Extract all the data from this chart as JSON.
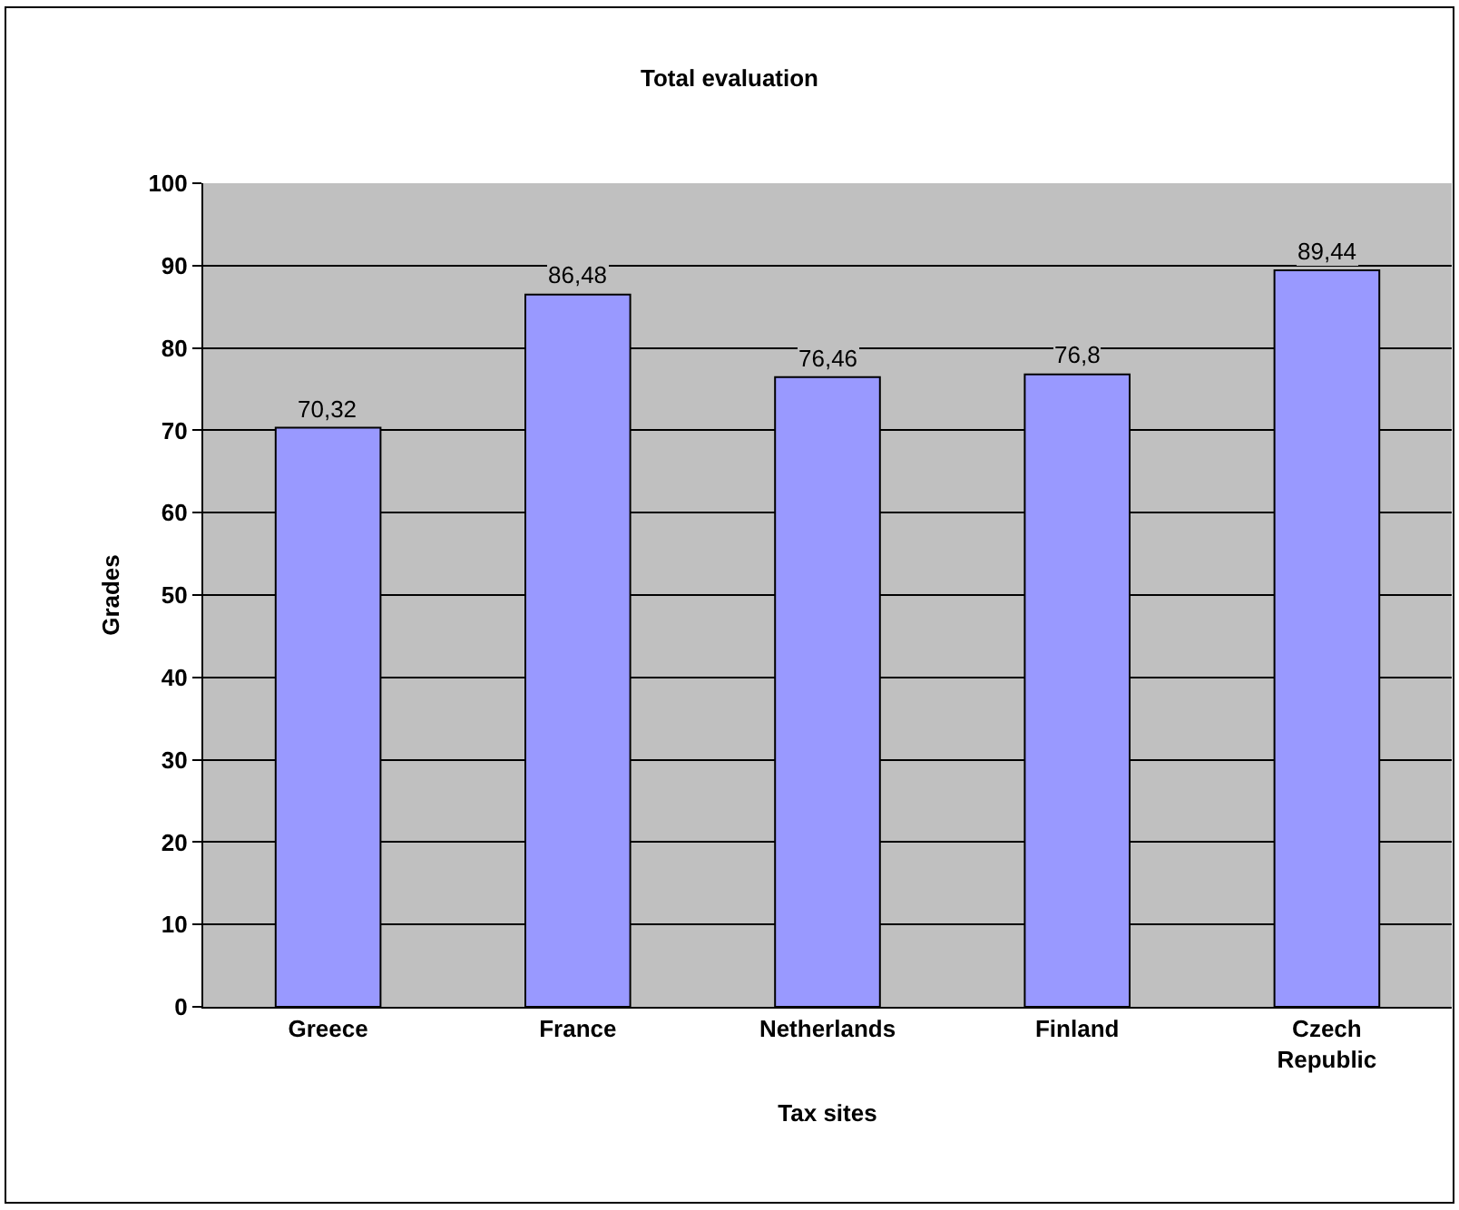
{
  "chart_data": {
    "type": "bar",
    "title": "Total evaluation",
    "xlabel": "Tax sites",
    "ylabel": "Grades",
    "categories": [
      "Greece",
      "France",
      "Netherlands",
      "Finland",
      "Czech Republic"
    ],
    "values": [
      70.32,
      86.48,
      76.46,
      76.8,
      89.44
    ],
    "value_labels": [
      "70,32",
      "86,48",
      "76,46",
      "76,8",
      "89,44"
    ],
    "color": "#9999ff",
    "ylim": [
      0,
      100
    ],
    "yticks": [
      0,
      10,
      20,
      30,
      40,
      50,
      60,
      70,
      80,
      90,
      100
    ],
    "grid": "y",
    "legend": false
  }
}
